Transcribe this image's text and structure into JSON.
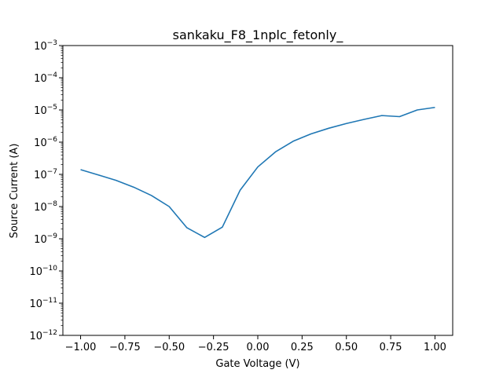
{
  "chart_data": {
    "type": "line",
    "title": "sankaku_F8_1nplc_fetonly_",
    "xlabel": "Gate Voltage (V)",
    "ylabel": "Source Current (A)",
    "xlim": [
      -1.1,
      1.1
    ],
    "ylim": [
      1e-12,
      0.001
    ],
    "yscale": "log",
    "grid": false,
    "line_color": "#1f77b4",
    "x_ticks": [
      {
        "value": -1.0,
        "label": "−1.00"
      },
      {
        "value": -0.75,
        "label": "−0.75"
      },
      {
        "value": -0.5,
        "label": "−0.50"
      },
      {
        "value": -0.25,
        "label": "−0.25"
      },
      {
        "value": 0.0,
        "label": "0.00"
      },
      {
        "value": 0.25,
        "label": "0.25"
      },
      {
        "value": 0.5,
        "label": "0.50"
      },
      {
        "value": 0.75,
        "label": "0.75"
      },
      {
        "value": 1.0,
        "label": "1.00"
      }
    ],
    "y_ticks": [
      {
        "exp": -12,
        "base": "10",
        "sup": "−12"
      },
      {
        "exp": -11,
        "base": "10",
        "sup": "−11"
      },
      {
        "exp": -10,
        "base": "10",
        "sup": "−10"
      },
      {
        "exp": -9,
        "base": "10",
        "sup": "−9"
      },
      {
        "exp": -8,
        "base": "10",
        "sup": "−8"
      },
      {
        "exp": -7,
        "base": "10",
        "sup": "−7"
      },
      {
        "exp": -6,
        "base": "10",
        "sup": "−6"
      },
      {
        "exp": -5,
        "base": "10",
        "sup": "−5"
      },
      {
        "exp": -4,
        "base": "10",
        "sup": "−4"
      },
      {
        "exp": -3,
        "base": "10",
        "sup": "−3"
      }
    ],
    "series": [
      {
        "x": [
          -1.0,
          -0.9,
          -0.8,
          -0.7,
          -0.6,
          -0.5,
          -0.4,
          -0.3,
          -0.2,
          -0.1,
          0.0,
          0.1,
          0.2,
          0.3,
          0.4,
          0.5,
          0.6,
          0.7,
          0.8,
          0.9,
          1.0
        ],
        "y": [
          1.4e-07,
          9.6e-08,
          6.5e-08,
          4e-08,
          2.2e-08,
          1e-08,
          2.2e-09,
          1.1e-09,
          2.3e-09,
          3.2e-08,
          1.7e-07,
          5e-07,
          1.07e-06,
          1.8e-06,
          2.7e-06,
          3.8e-06,
          5.1e-06,
          6.7e-06,
          6.2e-06,
          1e-05,
          1.2e-05
        ]
      }
    ]
  }
}
